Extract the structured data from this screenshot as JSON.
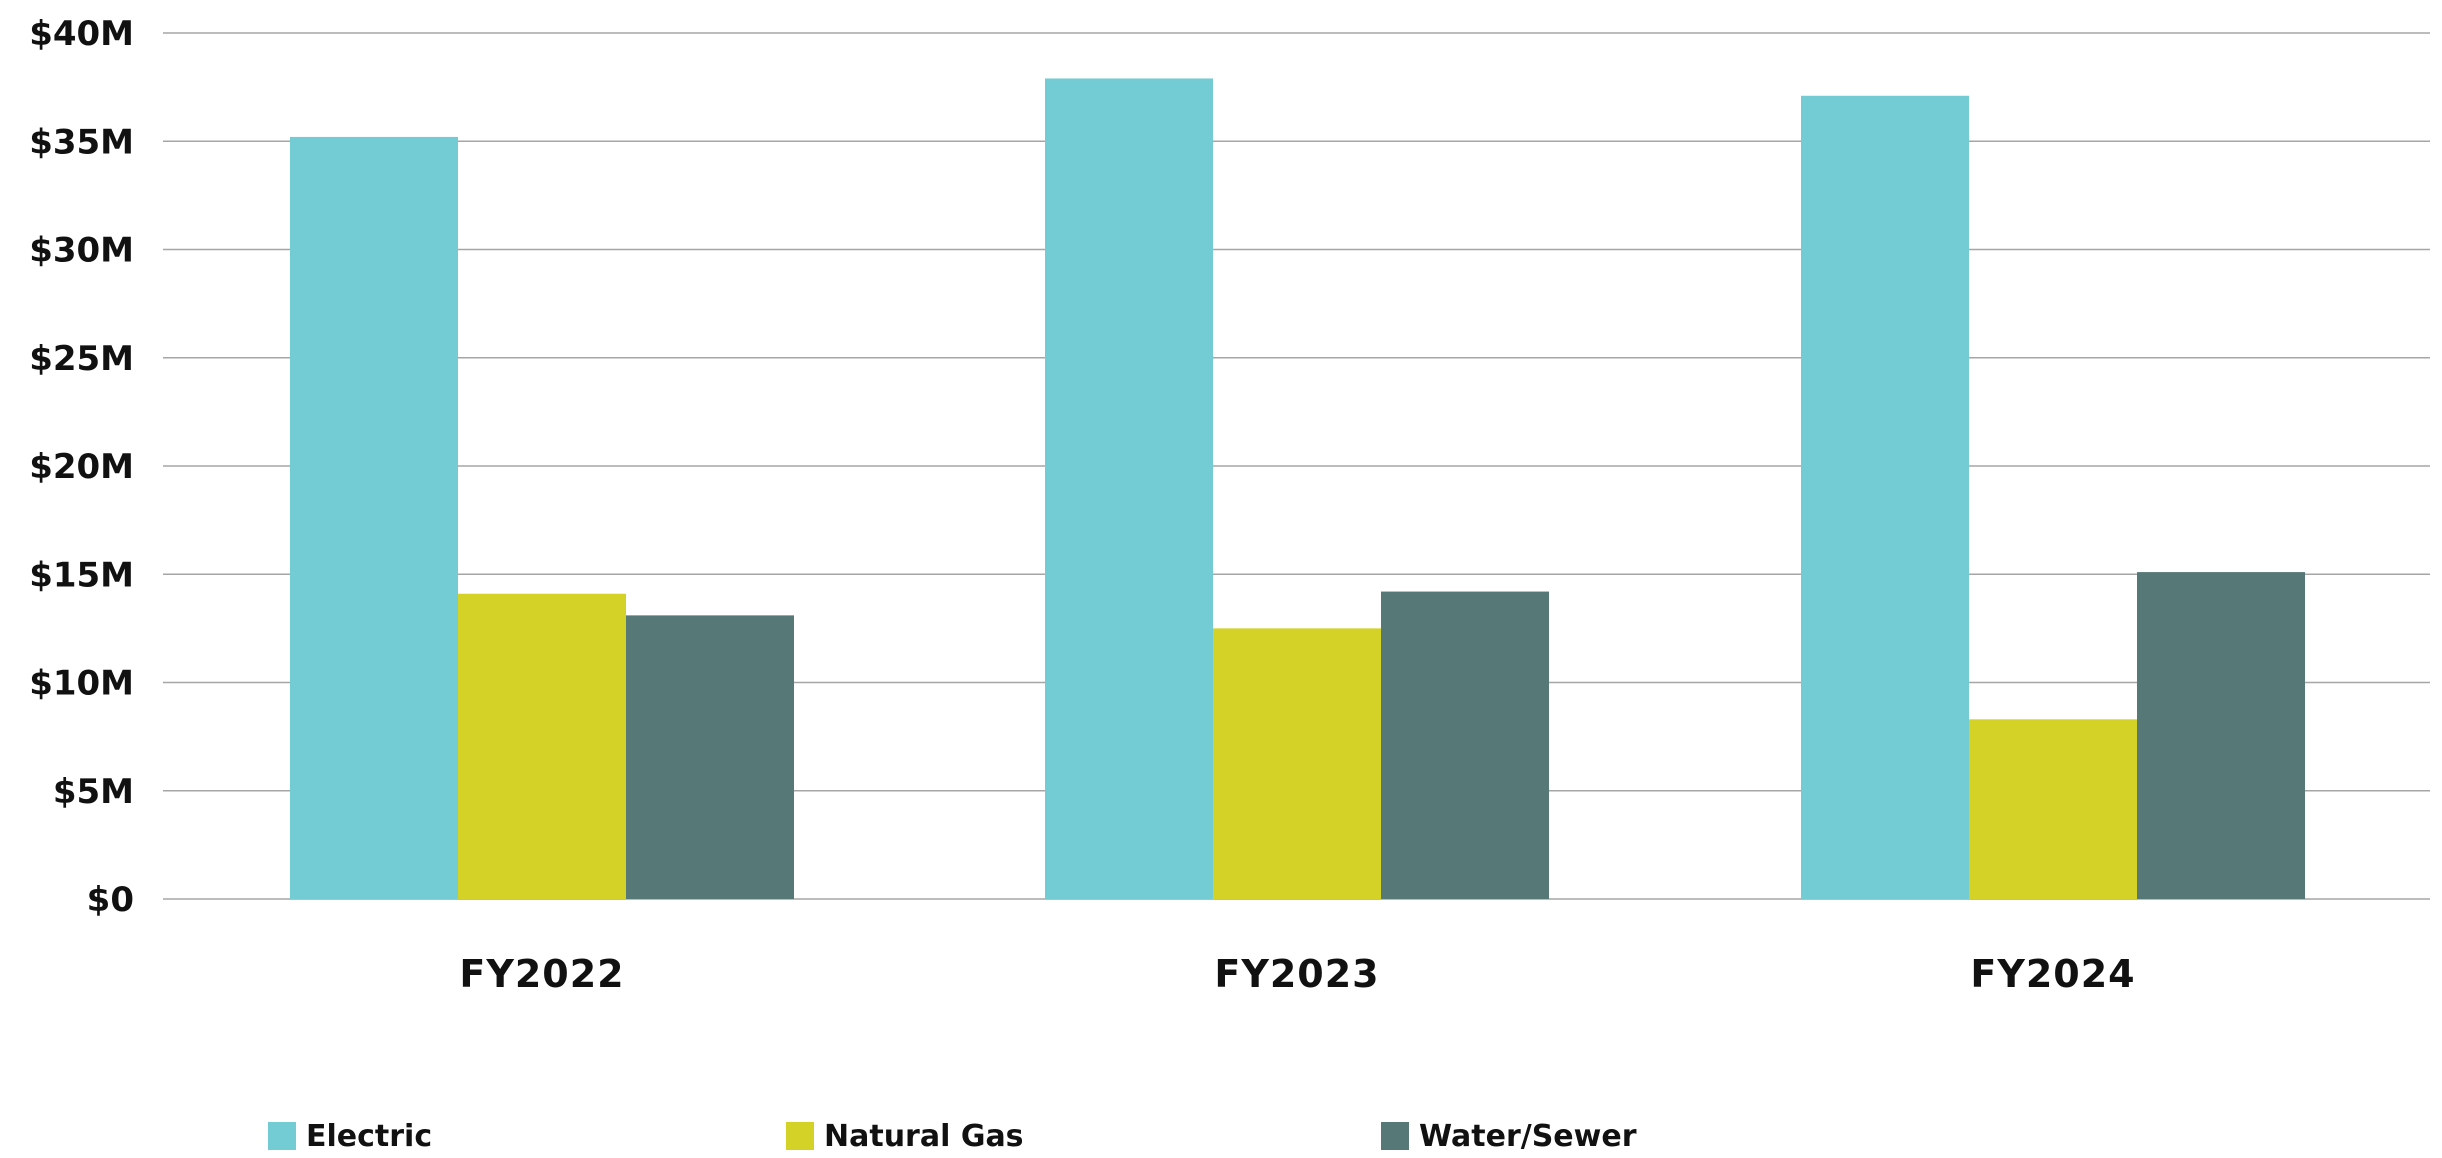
{
  "chart_data": {
    "type": "bar",
    "categories": [
      "FY2022",
      "FY2023",
      "FY2024"
    ],
    "series": [
      {
        "name": "Electric",
        "color": "#73CBD3",
        "values": [
          35.2,
          37.9,
          37.1
        ]
      },
      {
        "name": "Natural Gas",
        "color": "#D4D226",
        "values": [
          14.1,
          12.5,
          8.3
        ]
      },
      {
        "name": "Water/Sewer",
        "color": "#567876",
        "values": [
          13.1,
          14.2,
          15.1
        ]
      }
    ],
    "ylim": [
      0,
      40
    ],
    "yticks": [
      0,
      5,
      10,
      15,
      20,
      25,
      30,
      35,
      40
    ],
    "ytick_labels": [
      "$0",
      "$5M",
      "$10M",
      "$15M",
      "$20M",
      "$25M",
      "$30M",
      "$35M",
      "$40M"
    ],
    "grid": true,
    "legend_position": "bottom-left"
  }
}
